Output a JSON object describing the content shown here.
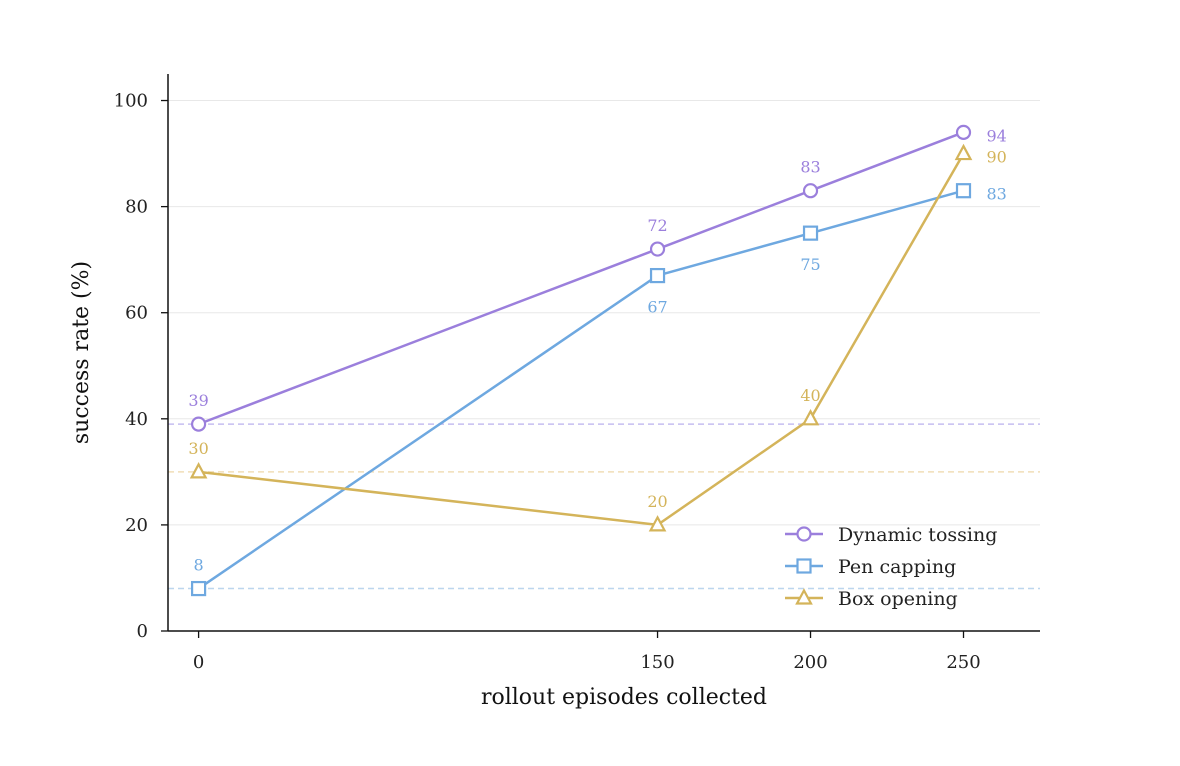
{
  "chart_data": {
    "type": "line",
    "xlabel": "rollout episodes collected",
    "ylabel": "success rate (%)",
    "x": [
      0,
      150,
      200,
      250
    ],
    "xlim": [
      -10,
      275
    ],
    "ylim": [
      0,
      105
    ],
    "xticks": [
      "0",
      "150",
      "200",
      "250"
    ],
    "yticks": [
      "0",
      "20",
      "40",
      "60",
      "80",
      "100"
    ],
    "grid": "horizontal",
    "legend_position": "lower-right",
    "series": [
      {
        "name": "Dynamic tossing",
        "marker": "circle",
        "color": "#9b7fdc",
        "baseline_color": "#c5bdf0",
        "values": [
          39,
          72,
          83,
          94
        ],
        "labels": [
          "39",
          "72",
          "83",
          "94"
        ],
        "label_positions": [
          "above",
          "above",
          "above",
          "right"
        ]
      },
      {
        "name": "Pen capping",
        "marker": "square",
        "color": "#6ea8e0",
        "baseline_color": "#bcd6ee",
        "values": [
          8,
          67,
          75,
          83
        ],
        "labels": [
          "8",
          "67",
          "75",
          "83"
        ],
        "label_positions": [
          "above",
          "below",
          "below",
          "right"
        ]
      },
      {
        "name": "Box opening",
        "marker": "triangle",
        "color": "#d4b45a",
        "baseline_color": "#f0deb8",
        "values": [
          30,
          20,
          40,
          90
        ],
        "labels": [
          "30",
          "20",
          "40",
          "90"
        ],
        "label_positions": [
          "above",
          "above",
          "above",
          "right"
        ]
      }
    ]
  }
}
